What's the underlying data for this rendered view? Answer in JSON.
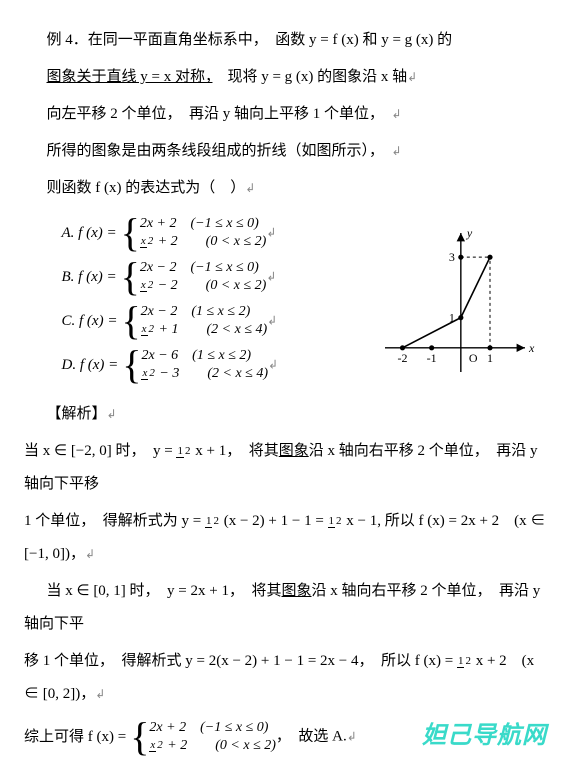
{
  "p1": "例 4．在同一平面直角坐标系中，　函数 y = f (x) 和 y = g (x) 的",
  "p2_a": "图象关于直线 y = x 对称，",
  "p2_b": "　现将 y = g (x) 的图象沿 x 轴",
  "p3": "向左平移 2 个单位，　再沿 y 轴向上平移 1 个单位，",
  "p4": "所得的图象是由两条线段组成的折线（如图所示），",
  "p5": "则函数 f (x) 的表达式为（　）",
  "optA_pre": "A.  f (x) =",
  "optA_r1a": "2x + 2",
  "optA_r1b": "(−1 ≤ x ≤ 0)",
  "optA_r2b": " + 2",
  "optA_r2c": "(0 < x ≤ 2)",
  "optB_pre": "B.  f (x) =",
  "optB_r1a": "2x − 2",
  "optB_r1b": "(−1 ≤ x ≤ 0)",
  "optB_r2b": " − 2",
  "optB_r2c": "(0 < x ≤ 2)",
  "optC_pre": "C.  f (x) =",
  "optC_r1a": "2x − 2",
  "optC_r1b": "(1 ≤ x ≤ 2)",
  "optC_r2b": " + 1",
  "optC_r2c": "(2 < x ≤ 4)",
  "optD_pre": "D.  f (x) =",
  "optD_r1a": "2x − 6",
  "optD_r1b": "(1 ≤ x ≤ 2)",
  "optD_r2b": " − 3",
  "optD_r2c": "(2 < x ≤ 4)",
  "sec": "【解析】",
  "e1_a": "当 x ∈ [−2, 0] 时，　y = ",
  "e1_b": " x + 1，　将其",
  "e1_c": "图象",
  "e1_d": "沿 x 轴向右平移 2 个单位，　再沿 y 轴向下平移",
  "e2_a": "1 个单位，　得解析式为 y = ",
  "e2_b": " (x − 2) + 1 − 1 = ",
  "e2_c": " x − 1, 所以 f (x) = 2x + 2　(x ∈ [−1, 0])，",
  "e3_a": "当 x ∈ [0, 1] 时，　y = 2x + 1，　将其",
  "e3_b": "图象",
  "e3_c": "沿 x 轴向右平移 2 个单位，　再沿 y 轴向下平",
  "e4_a": "移 1 个单位，　得解析式 y = 2(x − 2) + 1 − 1 = 2x − 4，　所以 f (x) = ",
  "e4_b": " x + 2　(x ∈ [0, 2])，",
  "e5_pre": "综上可得 f (x) =",
  "e5_r1a": "2x + 2",
  "e5_r1b": "(−1 ≤ x ≤ 0)",
  "e5_r2b": " + 2",
  "e5_r2c": "(0 < x ≤ 2)",
  "e5_suf": "，　故选 A.",
  "frac_x": "x",
  "frac_2": "2",
  "frac_1": "1",
  "cursor": "↲",
  "watermark": "妲己导航网",
  "chart": {
    "type": "line",
    "x_domain": [
      -2.6,
      2.2
    ],
    "y_domain": [
      -0.8,
      3.8
    ],
    "x_ticks": [
      -2,
      -1,
      1
    ],
    "y_ticks": [
      1,
      3
    ],
    "origin_label": "O",
    "x_label": "x",
    "y_label": "y",
    "polyline": [
      [
        -2,
        0
      ],
      [
        0,
        1
      ],
      [
        1,
        3
      ]
    ],
    "guide_lines": [
      [
        [
          1,
          0
        ],
        [
          1,
          3
        ]
      ],
      [
        [
          0,
          3
        ],
        [
          1,
          3
        ]
      ]
    ],
    "axis_color": "#000000",
    "line_color": "#000000",
    "guide_style": "dashed",
    "line_width": 1.6,
    "point_radius": 2.6,
    "points": [
      [
        -2,
        0
      ],
      [
        -1,
        0
      ],
      [
        0,
        1
      ],
      [
        1,
        3
      ],
      [
        0,
        3
      ],
      [
        1,
        0
      ]
    ]
  }
}
